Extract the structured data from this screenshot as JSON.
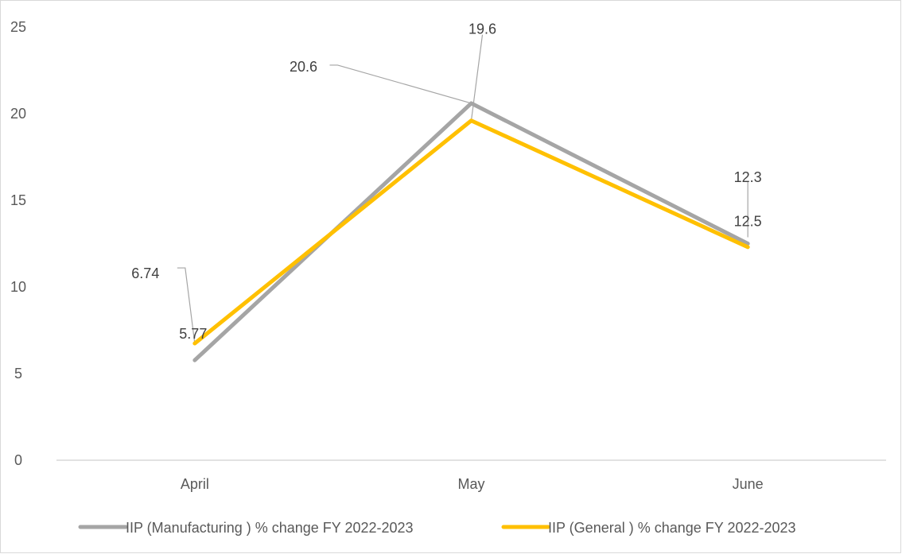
{
  "chart_data": {
    "type": "line",
    "categories": [
      "April",
      "May",
      "June"
    ],
    "ylim": [
      0,
      25
    ],
    "yticks": [
      0,
      5,
      10,
      15,
      20,
      25
    ],
    "grid": false,
    "legend_position": "bottom",
    "series": [
      {
        "name": "IIP (Manufacturing  )  % change FY 2022-2023",
        "color": "#a5a5a5",
        "values": [
          5.77,
          20.6,
          12.5
        ],
        "labels": [
          "5.77",
          "20.6",
          "12.5"
        ]
      },
      {
        "name": "IIP (General ) % change FY 2022-2023",
        "color": "#ffc000",
        "values": [
          6.74,
          19.6,
          12.3
        ],
        "labels": [
          "6.74",
          "19.6",
          "12.3"
        ]
      }
    ]
  }
}
